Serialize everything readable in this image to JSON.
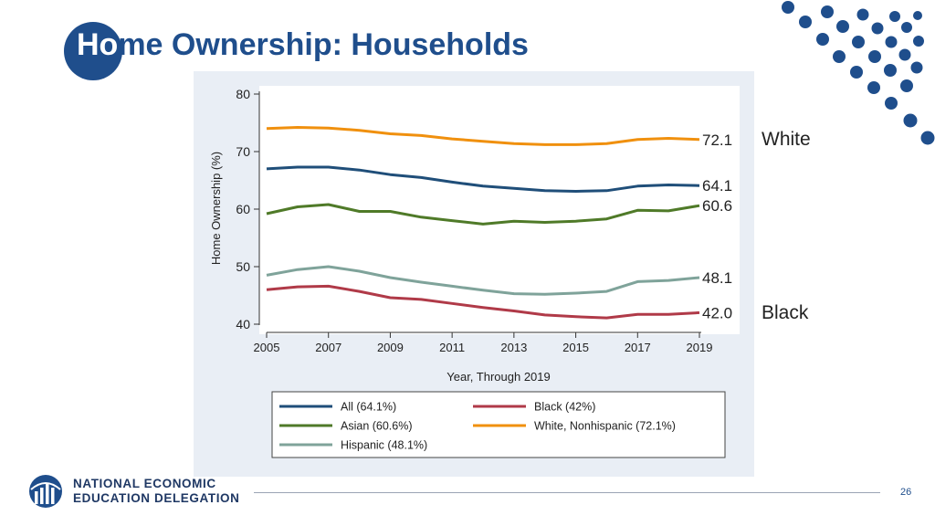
{
  "slide": {
    "title_first": "Ho",
    "title_rest": "me Ownership: Households",
    "page_number": "26"
  },
  "side_labels": {
    "top": "White",
    "bottom": "Black"
  },
  "org": {
    "line1": "NATIONAL ECONOMIC",
    "line2": "EDUCATION DELEGATION"
  },
  "colors": {
    "brand": "#1f4e8c",
    "all": "#1f4e79",
    "black": "#b03a48",
    "asian": "#4f7a28",
    "white": "#f0900e",
    "hispanic": "#7fa39a"
  },
  "chart_data": {
    "type": "line",
    "title": "",
    "xlabel": "Year, Through 2019",
    "ylabel": "Home Ownership (%)",
    "xlim": [
      2005,
      2019
    ],
    "ylim": [
      40,
      80
    ],
    "x_ticks": [
      2005,
      2007,
      2009,
      2011,
      2013,
      2015,
      2017,
      2019
    ],
    "y_ticks": [
      40,
      50,
      60,
      70,
      80
    ],
    "x": [
      2005,
      2006,
      2007,
      2008,
      2009,
      2010,
      2011,
      2012,
      2013,
      2014,
      2015,
      2016,
      2017,
      2018,
      2019
    ],
    "series": [
      {
        "key": "white",
        "name": "White, Nonhispanic (72.1%)",
        "end_label": "72.1",
        "values": [
          74.0,
          74.2,
          74.1,
          73.7,
          73.1,
          72.8,
          72.2,
          71.8,
          71.4,
          71.2,
          71.2,
          71.4,
          72.1,
          72.3,
          72.1
        ]
      },
      {
        "key": "all",
        "name": "All (64.1%)",
        "end_label": "64.1",
        "values": [
          67.0,
          67.3,
          67.3,
          66.8,
          66.0,
          65.5,
          64.7,
          64.0,
          63.6,
          63.2,
          63.1,
          63.2,
          64.0,
          64.2,
          64.1
        ]
      },
      {
        "key": "asian",
        "name": "Asian (60.6%)",
        "end_label": "60.6",
        "values": [
          59.2,
          60.4,
          60.8,
          59.6,
          59.6,
          58.6,
          58.0,
          57.4,
          57.9,
          57.7,
          57.9,
          58.3,
          59.8,
          59.7,
          60.6
        ]
      },
      {
        "key": "hispanic",
        "name": "Hispanic (48.1%)",
        "end_label": "48.1",
        "values": [
          48.5,
          49.5,
          50.0,
          49.2,
          48.1,
          47.3,
          46.6,
          45.9,
          45.3,
          45.2,
          45.4,
          45.7,
          47.4,
          47.6,
          48.1
        ]
      },
      {
        "key": "black",
        "name": "Black (42%)",
        "end_label": "42.0",
        "values": [
          46.0,
          46.5,
          46.6,
          45.7,
          44.6,
          44.3,
          43.6,
          42.9,
          42.3,
          41.6,
          41.3,
          41.1,
          41.7,
          41.7,
          42.0
        ]
      }
    ],
    "legend": {
      "placement": "bottom",
      "order": [
        "all",
        "black",
        "asian",
        "white",
        "hispanic"
      ]
    }
  }
}
